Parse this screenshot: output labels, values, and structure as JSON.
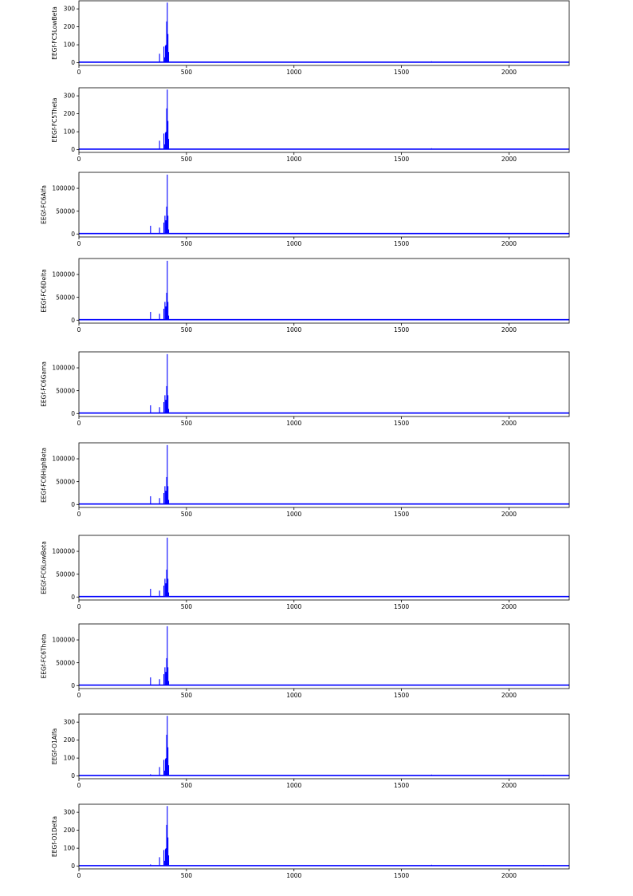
{
  "chart_data": [
    {
      "type": "line",
      "ylabel": "EEGf-FC5LowBeta",
      "xlim": [
        0,
        2280
      ],
      "ylim": [
        -15,
        345
      ],
      "x_ticks": [
        0,
        500,
        1000,
        1500,
        2000
      ],
      "y_ticks": [
        0,
        100,
        200,
        300
      ],
      "grid": false,
      "color": "#0000ff",
      "baseline": 3,
      "spikes": [
        {
          "x": 375,
          "y": 50
        },
        {
          "x": 395,
          "y": 90
        },
        {
          "x": 398,
          "y": 30
        },
        {
          "x": 402,
          "y": 95
        },
        {
          "x": 405,
          "y": 100
        },
        {
          "x": 408,
          "y": 230
        },
        {
          "x": 411,
          "y": 335
        },
        {
          "x": 414,
          "y": 160
        },
        {
          "x": 417,
          "y": 60
        },
        {
          "x": 1640,
          "y": 8
        }
      ]
    },
    {
      "type": "line",
      "ylabel": "EEGf-FC5Theta",
      "xlim": [
        0,
        2280
      ],
      "ylim": [
        -15,
        345
      ],
      "x_ticks": [
        0,
        500,
        1000,
        1500,
        2000
      ],
      "y_ticks": [
        0,
        100,
        200,
        300
      ],
      "grid": false,
      "color": "#0000ff",
      "baseline": 3,
      "spikes": [
        {
          "x": 375,
          "y": 50
        },
        {
          "x": 395,
          "y": 90
        },
        {
          "x": 398,
          "y": 30
        },
        {
          "x": 402,
          "y": 95
        },
        {
          "x": 405,
          "y": 100
        },
        {
          "x": 408,
          "y": 230
        },
        {
          "x": 411,
          "y": 335
        },
        {
          "x": 414,
          "y": 160
        },
        {
          "x": 417,
          "y": 60
        },
        {
          "x": 1640,
          "y": 8
        }
      ]
    },
    {
      "type": "line",
      "ylabel": "EEGf-FC6Alfa",
      "xlim": [
        0,
        2280
      ],
      "ylim": [
        -6500,
        135000
      ],
      "x_ticks": [
        0,
        500,
        1000,
        1500,
        2000
      ],
      "y_ticks": [
        0,
        50000,
        100000
      ],
      "grid": false,
      "color": "#0000ff",
      "baseline": 1000,
      "spikes": [
        {
          "x": 333,
          "y": 18000
        },
        {
          "x": 375,
          "y": 14000
        },
        {
          "x": 395,
          "y": 25000
        },
        {
          "x": 400,
          "y": 40000
        },
        {
          "x": 404,
          "y": 30000
        },
        {
          "x": 408,
          "y": 60000
        },
        {
          "x": 411,
          "y": 130000
        },
        {
          "x": 414,
          "y": 40000
        },
        {
          "x": 417,
          "y": 10000
        }
      ]
    },
    {
      "type": "line",
      "ylabel": "EEGf-FC6Delta",
      "xlim": [
        0,
        2280
      ],
      "ylim": [
        -6500,
        135000
      ],
      "x_ticks": [
        0,
        500,
        1000,
        1500,
        2000
      ],
      "y_ticks": [
        0,
        50000,
        100000
      ],
      "grid": false,
      "color": "#0000ff",
      "baseline": 1000,
      "spikes": [
        {
          "x": 333,
          "y": 18000
        },
        {
          "x": 375,
          "y": 14000
        },
        {
          "x": 395,
          "y": 25000
        },
        {
          "x": 400,
          "y": 40000
        },
        {
          "x": 404,
          "y": 30000
        },
        {
          "x": 408,
          "y": 60000
        },
        {
          "x": 411,
          "y": 130000
        },
        {
          "x": 414,
          "y": 40000
        },
        {
          "x": 417,
          "y": 10000
        }
      ]
    },
    {
      "type": "line",
      "ylabel": "EEGf-FC6Gama",
      "xlim": [
        0,
        2280
      ],
      "ylim": [
        -6500,
        135000
      ],
      "x_ticks": [
        0,
        500,
        1000,
        1500,
        2000
      ],
      "y_ticks": [
        0,
        50000,
        100000
      ],
      "grid": false,
      "color": "#0000ff",
      "baseline": 1000,
      "spikes": [
        {
          "x": 333,
          "y": 18000
        },
        {
          "x": 375,
          "y": 14000
        },
        {
          "x": 395,
          "y": 25000
        },
        {
          "x": 400,
          "y": 40000
        },
        {
          "x": 404,
          "y": 30000
        },
        {
          "x": 408,
          "y": 60000
        },
        {
          "x": 411,
          "y": 130000
        },
        {
          "x": 414,
          "y": 40000
        },
        {
          "x": 417,
          "y": 10000
        }
      ]
    },
    {
      "type": "line",
      "ylabel": "EEGf-FC6HighBeta",
      "xlim": [
        0,
        2280
      ],
      "ylim": [
        -6500,
        135000
      ],
      "x_ticks": [
        0,
        500,
        1000,
        1500,
        2000
      ],
      "y_ticks": [
        0,
        50000,
        100000
      ],
      "grid": false,
      "color": "#0000ff",
      "baseline": 1000,
      "spikes": [
        {
          "x": 333,
          "y": 18000
        },
        {
          "x": 375,
          "y": 14000
        },
        {
          "x": 395,
          "y": 25000
        },
        {
          "x": 400,
          "y": 40000
        },
        {
          "x": 404,
          "y": 30000
        },
        {
          "x": 408,
          "y": 60000
        },
        {
          "x": 411,
          "y": 130000
        },
        {
          "x": 414,
          "y": 40000
        },
        {
          "x": 417,
          "y": 10000
        }
      ]
    },
    {
      "type": "line",
      "ylabel": "EEGf-FC6LowBeta",
      "xlim": [
        0,
        2280
      ],
      "ylim": [
        -6500,
        135000
      ],
      "x_ticks": [
        0,
        500,
        1000,
        1500,
        2000
      ],
      "y_ticks": [
        0,
        50000,
        100000
      ],
      "grid": false,
      "color": "#0000ff",
      "baseline": 1000,
      "spikes": [
        {
          "x": 333,
          "y": 18000
        },
        {
          "x": 375,
          "y": 14000
        },
        {
          "x": 395,
          "y": 25000
        },
        {
          "x": 400,
          "y": 40000
        },
        {
          "x": 404,
          "y": 30000
        },
        {
          "x": 408,
          "y": 60000
        },
        {
          "x": 411,
          "y": 130000
        },
        {
          "x": 414,
          "y": 40000
        },
        {
          "x": 417,
          "y": 10000
        }
      ]
    },
    {
      "type": "line",
      "ylabel": "EEGf-FC6Theta",
      "xlim": [
        0,
        2280
      ],
      "ylim": [
        -6500,
        135000
      ],
      "x_ticks": [
        0,
        500,
        1000,
        1500,
        2000
      ],
      "y_ticks": [
        0,
        50000,
        100000
      ],
      "grid": false,
      "color": "#0000ff",
      "baseline": 1000,
      "spikes": [
        {
          "x": 333,
          "y": 18000
        },
        {
          "x": 375,
          "y": 14000
        },
        {
          "x": 395,
          "y": 25000
        },
        {
          "x": 400,
          "y": 40000
        },
        {
          "x": 404,
          "y": 30000
        },
        {
          "x": 408,
          "y": 60000
        },
        {
          "x": 411,
          "y": 130000
        },
        {
          "x": 414,
          "y": 40000
        },
        {
          "x": 417,
          "y": 10000
        }
      ]
    },
    {
      "type": "line",
      "ylabel": "EEGf-O1Alfa",
      "xlim": [
        0,
        2280
      ],
      "ylim": [
        -15,
        345
      ],
      "x_ticks": [
        0,
        500,
        1000,
        1500,
        2000
      ],
      "y_ticks": [
        0,
        100,
        200,
        300
      ],
      "grid": false,
      "color": "#0000ff",
      "baseline": 3,
      "spikes": [
        {
          "x": 333,
          "y": 10
        },
        {
          "x": 375,
          "y": 50
        },
        {
          "x": 395,
          "y": 90
        },
        {
          "x": 398,
          "y": 30
        },
        {
          "x": 402,
          "y": 95
        },
        {
          "x": 405,
          "y": 100
        },
        {
          "x": 408,
          "y": 230
        },
        {
          "x": 411,
          "y": 335
        },
        {
          "x": 414,
          "y": 160
        },
        {
          "x": 417,
          "y": 60
        },
        {
          "x": 1640,
          "y": 8
        },
        {
          "x": 2160,
          "y": 6
        }
      ]
    },
    {
      "type": "line",
      "ylabel": "EEGf-O1Delta",
      "xlim": [
        0,
        2280
      ],
      "ylim": [
        -15,
        345
      ],
      "x_ticks": [
        0,
        500,
        1000,
        1500,
        2000
      ],
      "y_ticks": [
        0,
        100,
        200,
        300
      ],
      "grid": false,
      "color": "#0000ff",
      "baseline": 3,
      "spikes": [
        {
          "x": 333,
          "y": 10
        },
        {
          "x": 375,
          "y": 50
        },
        {
          "x": 395,
          "y": 90
        },
        {
          "x": 398,
          "y": 30
        },
        {
          "x": 402,
          "y": 95
        },
        {
          "x": 405,
          "y": 100
        },
        {
          "x": 408,
          "y": 230
        },
        {
          "x": 411,
          "y": 335
        },
        {
          "x": 414,
          "y": 160
        },
        {
          "x": 417,
          "y": 60
        },
        {
          "x": 1640,
          "y": 8
        },
        {
          "x": 2160,
          "y": 6
        }
      ]
    }
  ]
}
